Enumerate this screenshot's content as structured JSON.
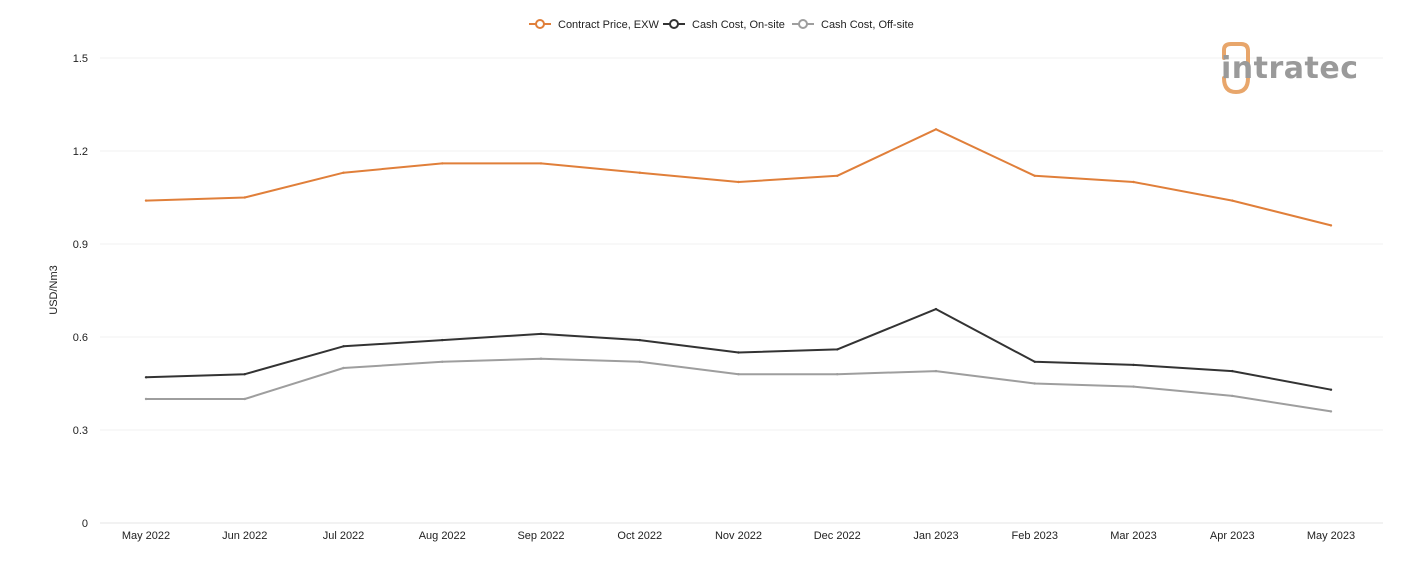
{
  "logo": {
    "text": "intratec",
    "accent": "#e8a66b",
    "gray": "#9a9a9a"
  },
  "chart_data": {
    "type": "line",
    "ylabel": "USD/Nm3",
    "xlabel": "",
    "ylim": [
      0,
      1.5
    ],
    "yticks": [
      0,
      0.3,
      0.6,
      0.9,
      1.2,
      1.5
    ],
    "ytick_labels": [
      "0",
      "0.3",
      "0.6",
      "0.9",
      "1.2",
      "1.5"
    ],
    "grid": true,
    "legend_position": "top-center",
    "categories": [
      "May 2022",
      "Jun 2022",
      "Jul 2022",
      "Aug 2022",
      "Sep 2022",
      "Oct 2022",
      "Nov 2022",
      "Dec 2022",
      "Jan 2023",
      "Feb 2023",
      "Mar 2023",
      "Apr 2023",
      "May 2023"
    ],
    "series": [
      {
        "name": "Contract Price, EXW",
        "color": "#e07f3a",
        "values": [
          1.04,
          1.05,
          1.13,
          1.16,
          1.16,
          1.13,
          1.1,
          1.12,
          1.27,
          1.12,
          1.1,
          1.04,
          0.96
        ]
      },
      {
        "name": "Cash Cost, On-site",
        "color": "#333333",
        "values": [
          0.47,
          0.48,
          0.57,
          0.59,
          0.61,
          0.59,
          0.55,
          0.56,
          0.69,
          0.52,
          0.51,
          0.49,
          0.43
        ]
      },
      {
        "name": "Cash Cost, Off-site",
        "color": "#9e9e9e",
        "values": [
          0.4,
          0.4,
          0.5,
          0.52,
          0.53,
          0.52,
          0.48,
          0.48,
          0.49,
          0.45,
          0.44,
          0.41,
          0.36
        ]
      }
    ]
  }
}
